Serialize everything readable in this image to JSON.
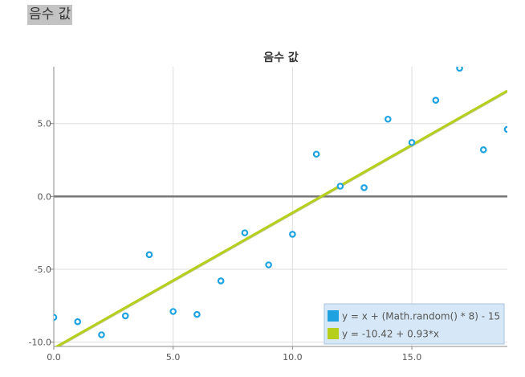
{
  "page": {
    "heading": "음수 값"
  },
  "colors": {
    "series_points": "#1ea3e0",
    "series_line": "#b5cf1a",
    "zero_line": "#777777",
    "grid": "#dddddd",
    "legend_bg": "#d6e8f7"
  },
  "chart_data": {
    "type": "scatter",
    "title": "음수 값",
    "xlabel": "",
    "ylabel": "",
    "xlim": [
      0,
      19
    ],
    "ylim": [
      -10.3,
      8.9
    ],
    "grid": true,
    "legend_position": "bottom-right",
    "x_ticks": [
      {
        "value": 0,
        "label": "0.0"
      },
      {
        "value": 5,
        "label": "5.0"
      },
      {
        "value": 10,
        "label": "10.0"
      },
      {
        "value": 15,
        "label": "15.0"
      }
    ],
    "y_ticks": [
      {
        "value": 5,
        "label": "5.0"
      },
      {
        "value": 0,
        "label": "0.0"
      },
      {
        "value": -5,
        "label": "-5.0"
      },
      {
        "value": -10,
        "label": "-10.0"
      }
    ],
    "series": [
      {
        "name": "y = x + (Math.random() * 8) - 15",
        "type": "scatter",
        "color": "#1ea3e0",
        "x": [
          0,
          1,
          2,
          3,
          4,
          5,
          6,
          7,
          8,
          9,
          10,
          11,
          12,
          13,
          14,
          15,
          16,
          17,
          18,
          19
        ],
        "y": [
          -8.3,
          -8.6,
          -9.5,
          -8.2,
          -4.0,
          -7.9,
          -8.1,
          -5.8,
          -2.5,
          -4.7,
          -2.6,
          2.9,
          0.7,
          0.6,
          5.3,
          3.7,
          6.6,
          8.8,
          3.2,
          4.6
        ]
      },
      {
        "name": "y = -10.42 + 0.93*x",
        "type": "line",
        "color": "#b5cf1a",
        "intercept": -10.42,
        "slope": 0.93
      }
    ]
  }
}
